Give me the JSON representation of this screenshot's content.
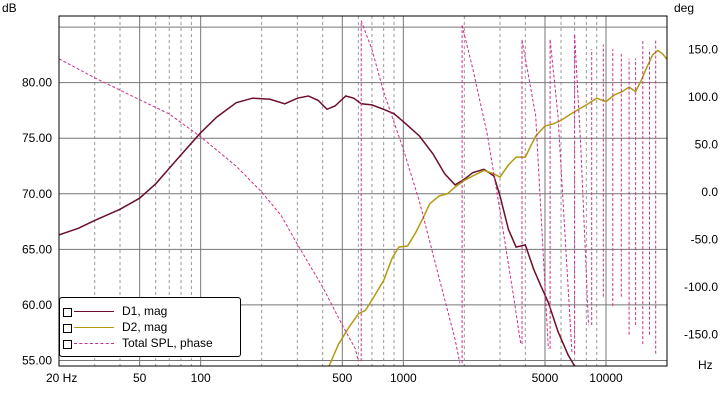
{
  "chart_data": {
    "type": "line",
    "xlabel": "Hz",
    "ylabel": "dB",
    "y2label": "deg",
    "xscale": "log",
    "xlim": [
      20,
      20000
    ],
    "ylim": [
      54.5,
      86
    ],
    "y2lim": [
      -183,
      185
    ],
    "x_ticks": [
      {
        "value": 20,
        "label": "20 Hz"
      },
      {
        "value": 50,
        "label": "50"
      },
      {
        "value": 100,
        "label": "100"
      },
      {
        "value": 500,
        "label": "500"
      },
      {
        "value": 1000,
        "label": "1000"
      },
      {
        "value": 5000,
        "label": "5000"
      },
      {
        "value": 10000,
        "label": "10000"
      }
    ],
    "y_ticks": [
      {
        "value": 55,
        "label": "55.00"
      },
      {
        "value": 60,
        "label": "60.00"
      },
      {
        "value": 65,
        "label": "65.00"
      },
      {
        "value": 70,
        "label": "70.00"
      },
      {
        "value": 75,
        "label": "75.00"
      },
      {
        "value": 80,
        "label": "80.00"
      }
    ],
    "y2_ticks": [
      {
        "value": 150,
        "label": "150.0"
      },
      {
        "value": 100,
        "label": "100.0"
      },
      {
        "value": 50,
        "label": "50.0"
      },
      {
        "value": 0,
        "label": "0.0"
      },
      {
        "value": -50,
        "label": "-50.0"
      },
      {
        "value": -100,
        "label": "-100.0"
      },
      {
        "value": -150,
        "label": "-150.0"
      }
    ],
    "grid": true,
    "legend_position": "bottom-left",
    "series": [
      {
        "name": "D1, mag",
        "axis": "left",
        "color": "#6b0f2a",
        "style": "solid",
        "points": [
          [
            20,
            66.3
          ],
          [
            25,
            66.9
          ],
          [
            30,
            67.6
          ],
          [
            40,
            68.6
          ],
          [
            50,
            69.6
          ],
          [
            60,
            70.9
          ],
          [
            70,
            72.3
          ],
          [
            80,
            73.5
          ],
          [
            100,
            75.5
          ],
          [
            120,
            76.9
          ],
          [
            150,
            78.2
          ],
          [
            180,
            78.6
          ],
          [
            220,
            78.5
          ],
          [
            260,
            78.1
          ],
          [
            300,
            78.6
          ],
          [
            340,
            78.8
          ],
          [
            380,
            78.4
          ],
          [
            420,
            77.6
          ],
          [
            460,
            77.9
          ],
          [
            520,
            78.8
          ],
          [
            570,
            78.6
          ],
          [
            620,
            78.1
          ],
          [
            700,
            78.0
          ],
          [
            800,
            77.6
          ],
          [
            900,
            77.2
          ],
          [
            1000,
            76.5
          ],
          [
            1200,
            75.2
          ],
          [
            1400,
            73.6
          ],
          [
            1600,
            71.8
          ],
          [
            1800,
            70.8
          ],
          [
            2000,
            71.3
          ],
          [
            2200,
            71.9
          ],
          [
            2500,
            72.2
          ],
          [
            2800,
            71.6
          ],
          [
            3000,
            69.8
          ],
          [
            3300,
            66.8
          ],
          [
            3600,
            65.2
          ],
          [
            4000,
            65.4
          ],
          [
            4400,
            63.2
          ],
          [
            4800,
            61.6
          ],
          [
            5200,
            60.2
          ],
          [
            5800,
            57.6
          ],
          [
            6500,
            55.5
          ],
          [
            7000,
            54.5
          ]
        ]
      },
      {
        "name": "D2, mag",
        "axis": "left",
        "color": "#b29a10",
        "style": "solid",
        "points": [
          [
            430,
            54.5
          ],
          [
            480,
            56.5
          ],
          [
            540,
            58.0
          ],
          [
            600,
            59.2
          ],
          [
            650,
            59.5
          ],
          [
            720,
            60.8
          ],
          [
            800,
            62.2
          ],
          [
            880,
            64.2
          ],
          [
            950,
            65.2
          ],
          [
            1050,
            65.3
          ],
          [
            1150,
            66.5
          ],
          [
            1250,
            67.8
          ],
          [
            1350,
            69.1
          ],
          [
            1500,
            69.8
          ],
          [
            1650,
            70.0
          ],
          [
            1800,
            70.6
          ],
          [
            2000,
            71.2
          ],
          [
            2200,
            71.6
          ],
          [
            2500,
            72.1
          ],
          [
            2800,
            71.8
          ],
          [
            3000,
            71.5
          ],
          [
            3300,
            72.6
          ],
          [
            3600,
            73.3
          ],
          [
            4000,
            73.3
          ],
          [
            4500,
            75.2
          ],
          [
            5000,
            76.1
          ],
          [
            5500,
            76.3
          ],
          [
            6000,
            76.6
          ],
          [
            7000,
            77.4
          ],
          [
            8000,
            78.0
          ],
          [
            9000,
            78.6
          ],
          [
            10000,
            78.3
          ],
          [
            11000,
            78.9
          ],
          [
            12000,
            79.2
          ],
          [
            13000,
            79.6
          ],
          [
            14000,
            79.2
          ],
          [
            15000,
            80.3
          ],
          [
            16000,
            81.5
          ],
          [
            17000,
            82.5
          ],
          [
            18000,
            82.9
          ],
          [
            19000,
            82.6
          ],
          [
            20000,
            82.1
          ]
        ]
      },
      {
        "name": "Total SPL, phase",
        "axis": "right",
        "color": "#cc2f8a",
        "style": "dashed",
        "points": [
          [
            20,
            140
          ],
          [
            30,
            120
          ],
          [
            50,
            97
          ],
          [
            70,
            82
          ],
          [
            100,
            58
          ],
          [
            150,
            27
          ],
          [
            200,
            0
          ],
          [
            250,
            -25
          ],
          [
            300,
            -55
          ],
          [
            400,
            -100
          ],
          [
            500,
            -140
          ],
          [
            580,
            -165
          ],
          [
            600,
            -178
          ],
          [
            620,
            180
          ],
          [
            700,
            150
          ],
          [
            800,
            105
          ],
          [
            1000,
            45
          ],
          [
            1200,
            -10
          ],
          [
            1500,
            -90
          ],
          [
            1800,
            -155
          ],
          [
            1900,
            -180
          ],
          [
            1950,
            175
          ],
          [
            2200,
            130
          ],
          [
            2600,
            60
          ],
          [
            3000,
            -20
          ],
          [
            3500,
            -110
          ],
          [
            3800,
            -160
          ],
          [
            3850,
            160
          ],
          [
            4500,
            80
          ],
          [
            5000,
            -100
          ],
          [
            5200,
            -165
          ],
          [
            5300,
            160
          ],
          [
            5800,
            80
          ],
          [
            6300,
            -50
          ],
          [
            6800,
            -170
          ],
          [
            7000,
            165
          ],
          [
            7500,
            50
          ],
          [
            8200,
            -140
          ],
          [
            8500,
            150
          ],
          [
            9300,
            -110
          ],
          [
            9700,
            155
          ],
          [
            10400,
            -120
          ],
          [
            10800,
            150
          ],
          [
            11500,
            -110
          ],
          [
            11900,
            145
          ],
          [
            12600,
            -150
          ],
          [
            13000,
            140
          ],
          [
            13700,
            -140
          ],
          [
            14000,
            140
          ],
          [
            14800,
            -160
          ],
          [
            15200,
            160
          ],
          [
            16000,
            -150
          ],
          [
            16400,
            150
          ],
          [
            17200,
            -170
          ],
          [
            17600,
            160
          ],
          [
            18600,
            -175
          ]
        ]
      }
    ]
  }
}
